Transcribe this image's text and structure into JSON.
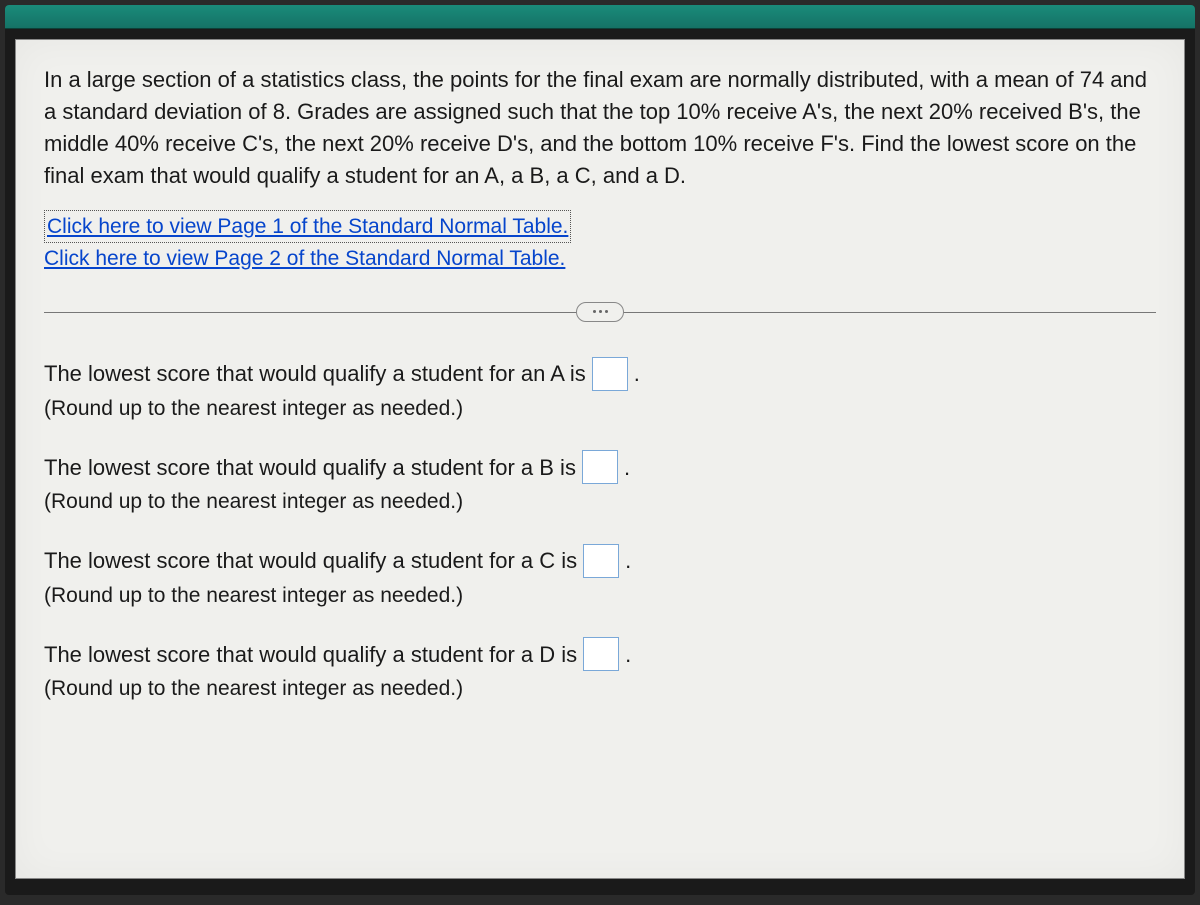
{
  "problem": {
    "text": "In a large section of a statistics class, the points for the final exam are normally distributed, with a mean of 74 and a standard deviation of 8. Grades are assigned such that the top 10% receive A's, the next 20% received B's, the middle 40% receive C's, the next 20% receive D's, and the bottom 10% receive F's. Find the lowest score on the final exam that would qualify a student for an A, a B, a C, and a D."
  },
  "links": {
    "page1": "Click here to view Page 1 of the Standard Normal Table.",
    "page2": "Click here to view Page 2 of the Standard Normal Table."
  },
  "answers": {
    "a": {
      "prompt_before": "The lowest score that would qualify a student for an A is",
      "prompt_after": ".",
      "hint": "(Round up to the nearest integer as needed.)",
      "value": ""
    },
    "b": {
      "prompt_before": "The lowest score that would qualify a student for a B is",
      "prompt_after": ".",
      "hint": "(Round up to the nearest integer as needed.)",
      "value": ""
    },
    "c": {
      "prompt_before": "The lowest score that would qualify a student for a C is",
      "prompt_after": ".",
      "hint": "(Round up to the nearest integer as needed.)",
      "value": ""
    },
    "d": {
      "prompt_before": "The lowest score that would qualify a student for a D is",
      "prompt_after": ".",
      "hint": "(Round up to the nearest integer as needed.)",
      "value": ""
    }
  },
  "colors": {
    "panel_bg": "#f0f0ed",
    "text": "#1a1a1a",
    "link": "#0645cc",
    "input_border": "#7aa8d8",
    "topbar": "#1a8b7a"
  }
}
